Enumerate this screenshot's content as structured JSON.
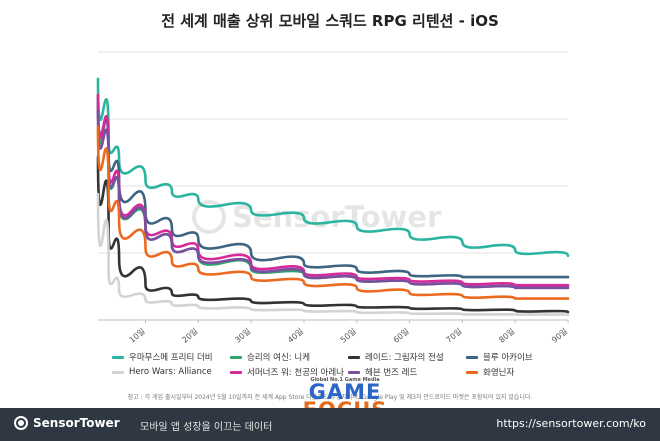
{
  "chart_data": {
    "type": "line",
    "title": "전 세계 매출 상위 모바일 스쿼드 RPG 리텐션 - iOS",
    "xlabel": "",
    "ylabel": "",
    "x_ticks": [
      "10일",
      "20일",
      "30일",
      "40일",
      "50일",
      "60일",
      "70일",
      "80일",
      "90일"
    ],
    "xlim": [
      1,
      90
    ],
    "ylim": [
      0,
      1
    ],
    "grid": true,
    "legend_position": "bottom",
    "series": [
      {
        "name": "우마무스메 프리티 더비",
        "color": "#2bb5a0",
        "points": [
          [
            1,
            0.9
          ],
          [
            3,
            0.67
          ],
          [
            5,
            0.6
          ],
          [
            10,
            0.52
          ],
          [
            15,
            0.48
          ],
          [
            20,
            0.45
          ],
          [
            30,
            0.41
          ],
          [
            40,
            0.38
          ],
          [
            50,
            0.35
          ],
          [
            60,
            0.32
          ],
          [
            70,
            0.29
          ],
          [
            80,
            0.26
          ],
          [
            90,
            0.24
          ]
        ]
      },
      {
        "name": "승리의 여신: 니케",
        "color": "#2fa36b",
        "points": [
          [
            1,
            0.84
          ],
          [
            3,
            0.57
          ],
          [
            5,
            0.45
          ],
          [
            10,
            0.34
          ],
          [
            15,
            0.28
          ],
          [
            20,
            0.24
          ],
          [
            30,
            0.19
          ],
          [
            40,
            0.17
          ],
          [
            50,
            0.15
          ],
          [
            60,
            0.14
          ],
          [
            70,
            0.13
          ],
          [
            80,
            0.12
          ],
          [
            90,
            0.12
          ]
        ]
      },
      {
        "name": "레이드: 그림자의 전설",
        "color": "#333333",
        "points": [
          [
            1,
            0.61
          ],
          [
            3,
            0.34
          ],
          [
            5,
            0.23
          ],
          [
            10,
            0.13
          ],
          [
            15,
            0.1
          ],
          [
            20,
            0.085
          ],
          [
            30,
            0.07
          ],
          [
            40,
            0.06
          ],
          [
            50,
            0.05
          ],
          [
            60,
            0.045
          ],
          [
            70,
            0.04
          ],
          [
            80,
            0.035
          ],
          [
            90,
            0.03
          ]
        ]
      },
      {
        "name": "블루 아카이브",
        "color": "#3d6480",
        "points": [
          [
            1,
            0.81
          ],
          [
            3,
            0.63
          ],
          [
            5,
            0.52
          ],
          [
            10,
            0.4
          ],
          [
            15,
            0.34
          ],
          [
            20,
            0.3
          ],
          [
            30,
            0.25
          ],
          [
            40,
            0.21
          ],
          [
            50,
            0.19
          ],
          [
            60,
            0.17
          ],
          [
            70,
            0.16
          ],
          [
            80,
            0.16
          ],
          [
            90,
            0.16
          ]
        ]
      },
      {
        "name": "Hero Wars: Alliance",
        "color": "#d3d3d3",
        "points": [
          [
            1,
            0.47
          ],
          [
            3,
            0.18
          ],
          [
            5,
            0.11
          ],
          [
            10,
            0.075
          ],
          [
            15,
            0.06
          ],
          [
            20,
            0.05
          ],
          [
            30,
            0.04
          ],
          [
            40,
            0.035
          ],
          [
            50,
            0.03
          ],
          [
            60,
            0.025
          ],
          [
            70,
            0.022
          ],
          [
            80,
            0.02
          ],
          [
            90,
            0.02
          ]
        ]
      },
      {
        "name": "서머너즈 워: 천공의 아레나",
        "color": "#d6299a",
        "points": [
          [
            1,
            0.84
          ],
          [
            3,
            0.6
          ],
          [
            5,
            0.47
          ],
          [
            10,
            0.35
          ],
          [
            15,
            0.3
          ],
          [
            20,
            0.26
          ],
          [
            30,
            0.21
          ],
          [
            40,
            0.18
          ],
          [
            50,
            0.16
          ],
          [
            60,
            0.15
          ],
          [
            70,
            0.14
          ],
          [
            80,
            0.13
          ],
          [
            90,
            0.13
          ]
        ]
      },
      {
        "name": "헤븐 번즈 레드",
        "color": "#7a4fa0",
        "points": [
          [
            1,
            0.78
          ],
          [
            3,
            0.57
          ],
          [
            5,
            0.46
          ],
          [
            10,
            0.34
          ],
          [
            15,
            0.28
          ],
          [
            20,
            0.24
          ],
          [
            30,
            0.2
          ],
          [
            40,
            0.17
          ],
          [
            50,
            0.15
          ],
          [
            60,
            0.14
          ],
          [
            70,
            0.13
          ],
          [
            80,
            0.12
          ],
          [
            90,
            0.12
          ]
        ]
      },
      {
        "name": "화영닌자",
        "color": "#ec6a1f",
        "points": [
          [
            1,
            0.72
          ],
          [
            3,
            0.48
          ],
          [
            5,
            0.37
          ],
          [
            10,
            0.27
          ],
          [
            15,
            0.22
          ],
          [
            20,
            0.19
          ],
          [
            30,
            0.16
          ],
          [
            40,
            0.14
          ],
          [
            50,
            0.12
          ],
          [
            60,
            0.1
          ],
          [
            70,
            0.09
          ],
          [
            80,
            0.08
          ],
          [
            90,
            0.08
          ]
        ]
      }
    ]
  },
  "note": "참고 : 각 게임 출시일부터 2024년 5월 10일까지 전 세계 App Store 다운로드 추정치이며, Google Play 및 제3자 안드로이드 마켓은 포함되어 있지 않습니다.",
  "watermark": "SensorTower",
  "overlay": {
    "sub": "Global No.1 Game Media",
    "line1": "GAME",
    "line2": "FOCUS"
  },
  "footer": {
    "brand": "SensorTower",
    "tagline": "모바일 앱 성장을 이끄는 데이터",
    "url": "https://sensortower.com/ko"
  }
}
